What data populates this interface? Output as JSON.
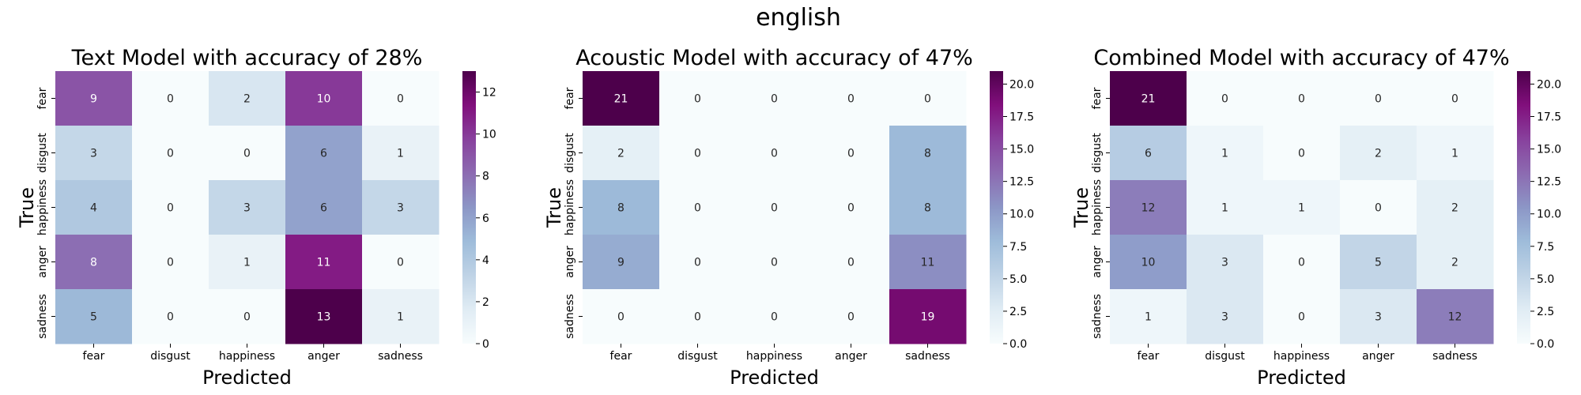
{
  "figure_title": "english",
  "chart_data": [
    {
      "type": "heatmap",
      "title": "Text Model with accuracy of 28%",
      "xlabel": "Predicted",
      "ylabel": "True",
      "x_categories": [
        "fear",
        "disgust",
        "happiness",
        "anger",
        "sadness"
      ],
      "y_categories": [
        "fear",
        "disgust",
        "happiness",
        "anger",
        "sadness"
      ],
      "matrix": [
        [
          9,
          0,
          2,
          10,
          0
        ],
        [
          3,
          0,
          0,
          6,
          1
        ],
        [
          4,
          0,
          3,
          6,
          3
        ],
        [
          8,
          0,
          1,
          11,
          0
        ],
        [
          5,
          0,
          0,
          13,
          1
        ]
      ],
      "colorbar": {
        "vmin": 0,
        "vmax": 13,
        "ticks": [
          0,
          2,
          4,
          6,
          8,
          10,
          12
        ],
        "tick_labels": [
          "0",
          "2",
          "4",
          "6",
          "8",
          "10",
          "12"
        ]
      },
      "colormap": "BuPu"
    },
    {
      "type": "heatmap",
      "title": "Acoustic Model with accuracy of 47%",
      "xlabel": "Predicted",
      "ylabel": "True",
      "x_categories": [
        "fear",
        "disgust",
        "happiness",
        "anger",
        "sadness"
      ],
      "y_categories": [
        "fear",
        "disgust",
        "happiness",
        "anger",
        "sadness"
      ],
      "matrix": [
        [
          21,
          0,
          0,
          0,
          0
        ],
        [
          2,
          0,
          0,
          0,
          8
        ],
        [
          8,
          0,
          0,
          0,
          8
        ],
        [
          9,
          0,
          0,
          0,
          11
        ],
        [
          0,
          0,
          0,
          0,
          19
        ]
      ],
      "colorbar": {
        "vmin": 0,
        "vmax": 21,
        "ticks": [
          0,
          2.5,
          5,
          7.5,
          10,
          12.5,
          15,
          17.5,
          20
        ],
        "tick_labels": [
          "0.0",
          "2.5",
          "5.0",
          "7.5",
          "10.0",
          "12.5",
          "15.0",
          "17.5",
          "20.0"
        ]
      },
      "colormap": "BuPu"
    },
    {
      "type": "heatmap",
      "title": "Combined Model with accuracy of 47%",
      "xlabel": "Predicted",
      "ylabel": "True",
      "x_categories": [
        "fear",
        "disgust",
        "happiness",
        "anger",
        "sadness"
      ],
      "y_categories": [
        "fear",
        "disgust",
        "happiness",
        "anger",
        "sadness"
      ],
      "matrix": [
        [
          21,
          0,
          0,
          0,
          0
        ],
        [
          6,
          1,
          0,
          2,
          1
        ],
        [
          12,
          1,
          1,
          0,
          2
        ],
        [
          10,
          3,
          0,
          5,
          2
        ],
        [
          1,
          3,
          0,
          3,
          12
        ]
      ],
      "colorbar": {
        "vmin": 0,
        "vmax": 21,
        "ticks": [
          0,
          2.5,
          5,
          7.5,
          10,
          12.5,
          15,
          17.5,
          20
        ],
        "tick_labels": [
          "0.0",
          "2.5",
          "5.0",
          "7.5",
          "10.0",
          "12.5",
          "15.0",
          "17.5",
          "20.0"
        ]
      },
      "colormap": "BuPu"
    }
  ]
}
